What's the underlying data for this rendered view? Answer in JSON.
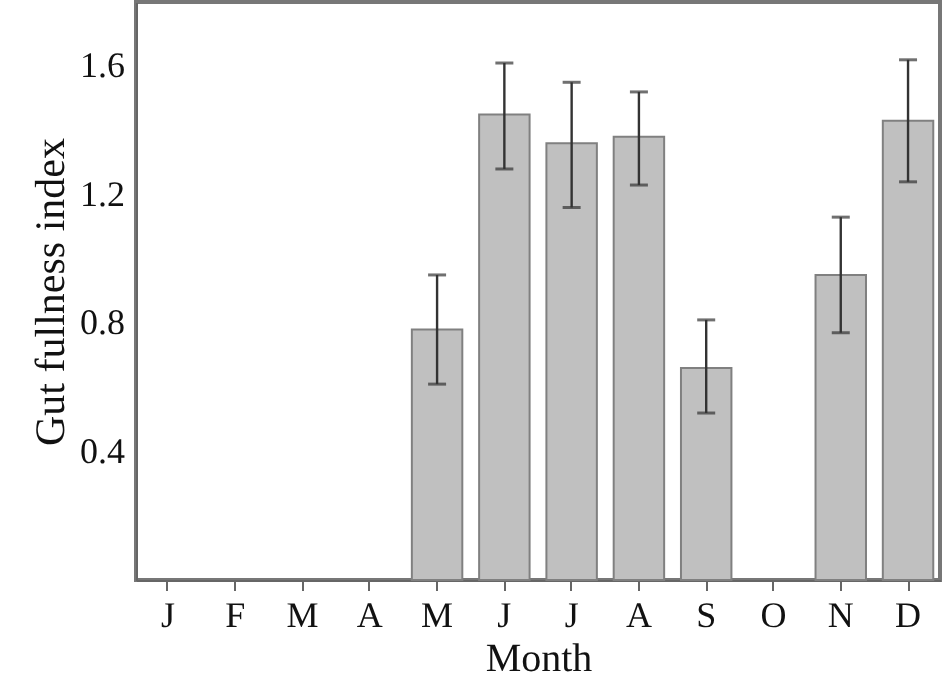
{
  "chart_data": {
    "type": "bar",
    "xlabel": "Month",
    "ylabel": "Gut fullness index",
    "categories": [
      "J",
      "F",
      "M",
      "A",
      "M",
      "J",
      "J",
      "A",
      "S",
      "O",
      "N",
      "D"
    ],
    "values": [
      null,
      null,
      null,
      null,
      0.78,
      1.45,
      1.36,
      1.38,
      0.66,
      null,
      0.95,
      1.43
    ],
    "errors": [
      null,
      null,
      null,
      null,
      [
        0.61,
        0.95
      ],
      [
        1.28,
        1.61
      ],
      [
        1.16,
        1.55
      ],
      [
        1.23,
        1.52
      ],
      [
        0.52,
        0.81
      ],
      null,
      [
        0.77,
        1.13
      ],
      [
        1.24,
        1.62
      ]
    ],
    "color": "#c0c0c0",
    "ylim": [
      0,
      1.8
    ],
    "yticks": [
      0.4,
      0.8,
      1.2,
      1.6
    ],
    "grid": false
  }
}
